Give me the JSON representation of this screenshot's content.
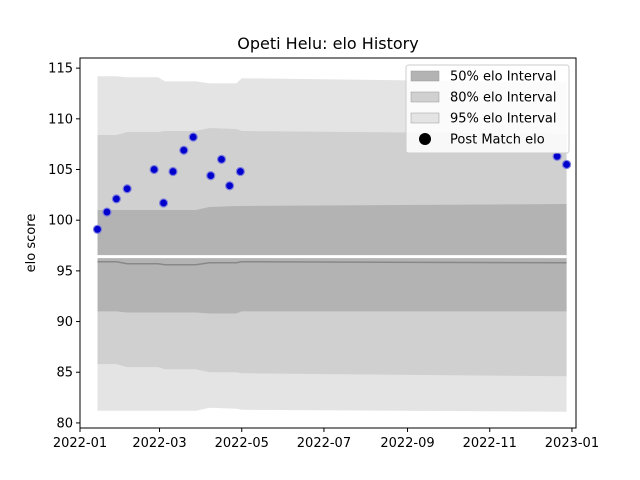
{
  "chart_data": {
    "type": "scatter",
    "title": "Opeti Helu: elo History",
    "xlabel": "",
    "ylabel": "elo score",
    "ylim": [
      79.5,
      116
    ],
    "xlim": [
      "2022-01-01",
      "2023-01-04"
    ],
    "yticks": [
      80,
      85,
      90,
      95,
      100,
      105,
      110,
      115
    ],
    "xticks": [
      {
        "date": "2022-01-01",
        "label": "2022-01"
      },
      {
        "date": "2022-03-01",
        "label": "2022-03"
      },
      {
        "date": "2022-05-01",
        "label": "2022-05"
      },
      {
        "date": "2022-07-01",
        "label": "2022-07"
      },
      {
        "date": "2022-09-01",
        "label": "2022-09"
      },
      {
        "date": "2022-11-01",
        "label": "2022-11"
      },
      {
        "date": "2023-01-01",
        "label": "2023-01"
      }
    ],
    "grid": false,
    "legend_position": "top-right",
    "band_dates": [
      "2022-01-14",
      "2022-01-28",
      "2022-02-05",
      "2022-02-28",
      "2022-03-05",
      "2022-03-28",
      "2022-04-07",
      "2022-04-27",
      "2022-05-01",
      "2022-12-28"
    ],
    "intervals": [
      {
        "name": "95% elo Interval",
        "color": "#e4e4e4",
        "upper": [
          114.2,
          114.2,
          114.1,
          114.1,
          113.7,
          113.7,
          113.5,
          113.5,
          114.0,
          113.6
        ],
        "lower": [
          81.2,
          81.2,
          81.2,
          81.2,
          81.2,
          81.2,
          81.5,
          81.4,
          81.3,
          81.1
        ]
      },
      {
        "name": "80% elo Interval",
        "color": "#d0d0d0",
        "upper": [
          108.4,
          108.4,
          108.7,
          108.7,
          108.8,
          108.8,
          109.1,
          109.0,
          108.8,
          108.5
        ],
        "lower": [
          85.8,
          85.8,
          85.5,
          85.5,
          85.3,
          85.3,
          85.0,
          85.0,
          84.9,
          84.6
        ]
      },
      {
        "name": "50% elo Interval",
        "color": "#b3b3b3",
        "upper": [
          101.0,
          101.0,
          101.0,
          101.0,
          101.0,
          101.0,
          101.3,
          101.4,
          101.4,
          101.6
        ],
        "lower": [
          91.0,
          91.0,
          90.9,
          90.9,
          90.9,
          90.9,
          90.8,
          90.8,
          91.0,
          91.0
        ]
      }
    ],
    "median_line": {
      "color": "#888888",
      "values": [
        95.9,
        95.9,
        95.7,
        95.7,
        95.6,
        95.6,
        95.8,
        95.8,
        95.9,
        95.8
      ]
    },
    "white_gap": 96.4,
    "series": [
      {
        "name": "Post Match elo",
        "color": "#0000cc",
        "points": [
          {
            "x": "2022-01-14",
            "y": 99.1
          },
          {
            "x": "2022-01-21",
            "y": 100.8
          },
          {
            "x": "2022-01-28",
            "y": 102.1
          },
          {
            "x": "2022-02-05",
            "y": 103.1
          },
          {
            "x": "2022-02-25",
            "y": 105.0
          },
          {
            "x": "2022-03-04",
            "y": 101.7
          },
          {
            "x": "2022-03-11",
            "y": 104.8
          },
          {
            "x": "2022-03-19",
            "y": 106.9
          },
          {
            "x": "2022-03-26",
            "y": 108.2
          },
          {
            "x": "2022-04-08",
            "y": 104.4
          },
          {
            "x": "2022-04-16",
            "y": 106.0
          },
          {
            "x": "2022-04-22",
            "y": 103.4
          },
          {
            "x": "2022-04-30",
            "y": 104.8
          },
          {
            "x": "2022-12-21",
            "y": 106.3
          },
          {
            "x": "2022-12-28",
            "y": 105.5
          }
        ]
      }
    ],
    "legend": [
      {
        "label": "50% elo Interval",
        "kind": "patch",
        "color": "#b3b3b3"
      },
      {
        "label": "80% elo Interval",
        "kind": "patch",
        "color": "#d0d0d0"
      },
      {
        "label": "95% elo Interval",
        "kind": "patch",
        "color": "#e4e4e4"
      },
      {
        "label": "Post Match elo",
        "kind": "marker",
        "color": "#000000"
      }
    ]
  }
}
